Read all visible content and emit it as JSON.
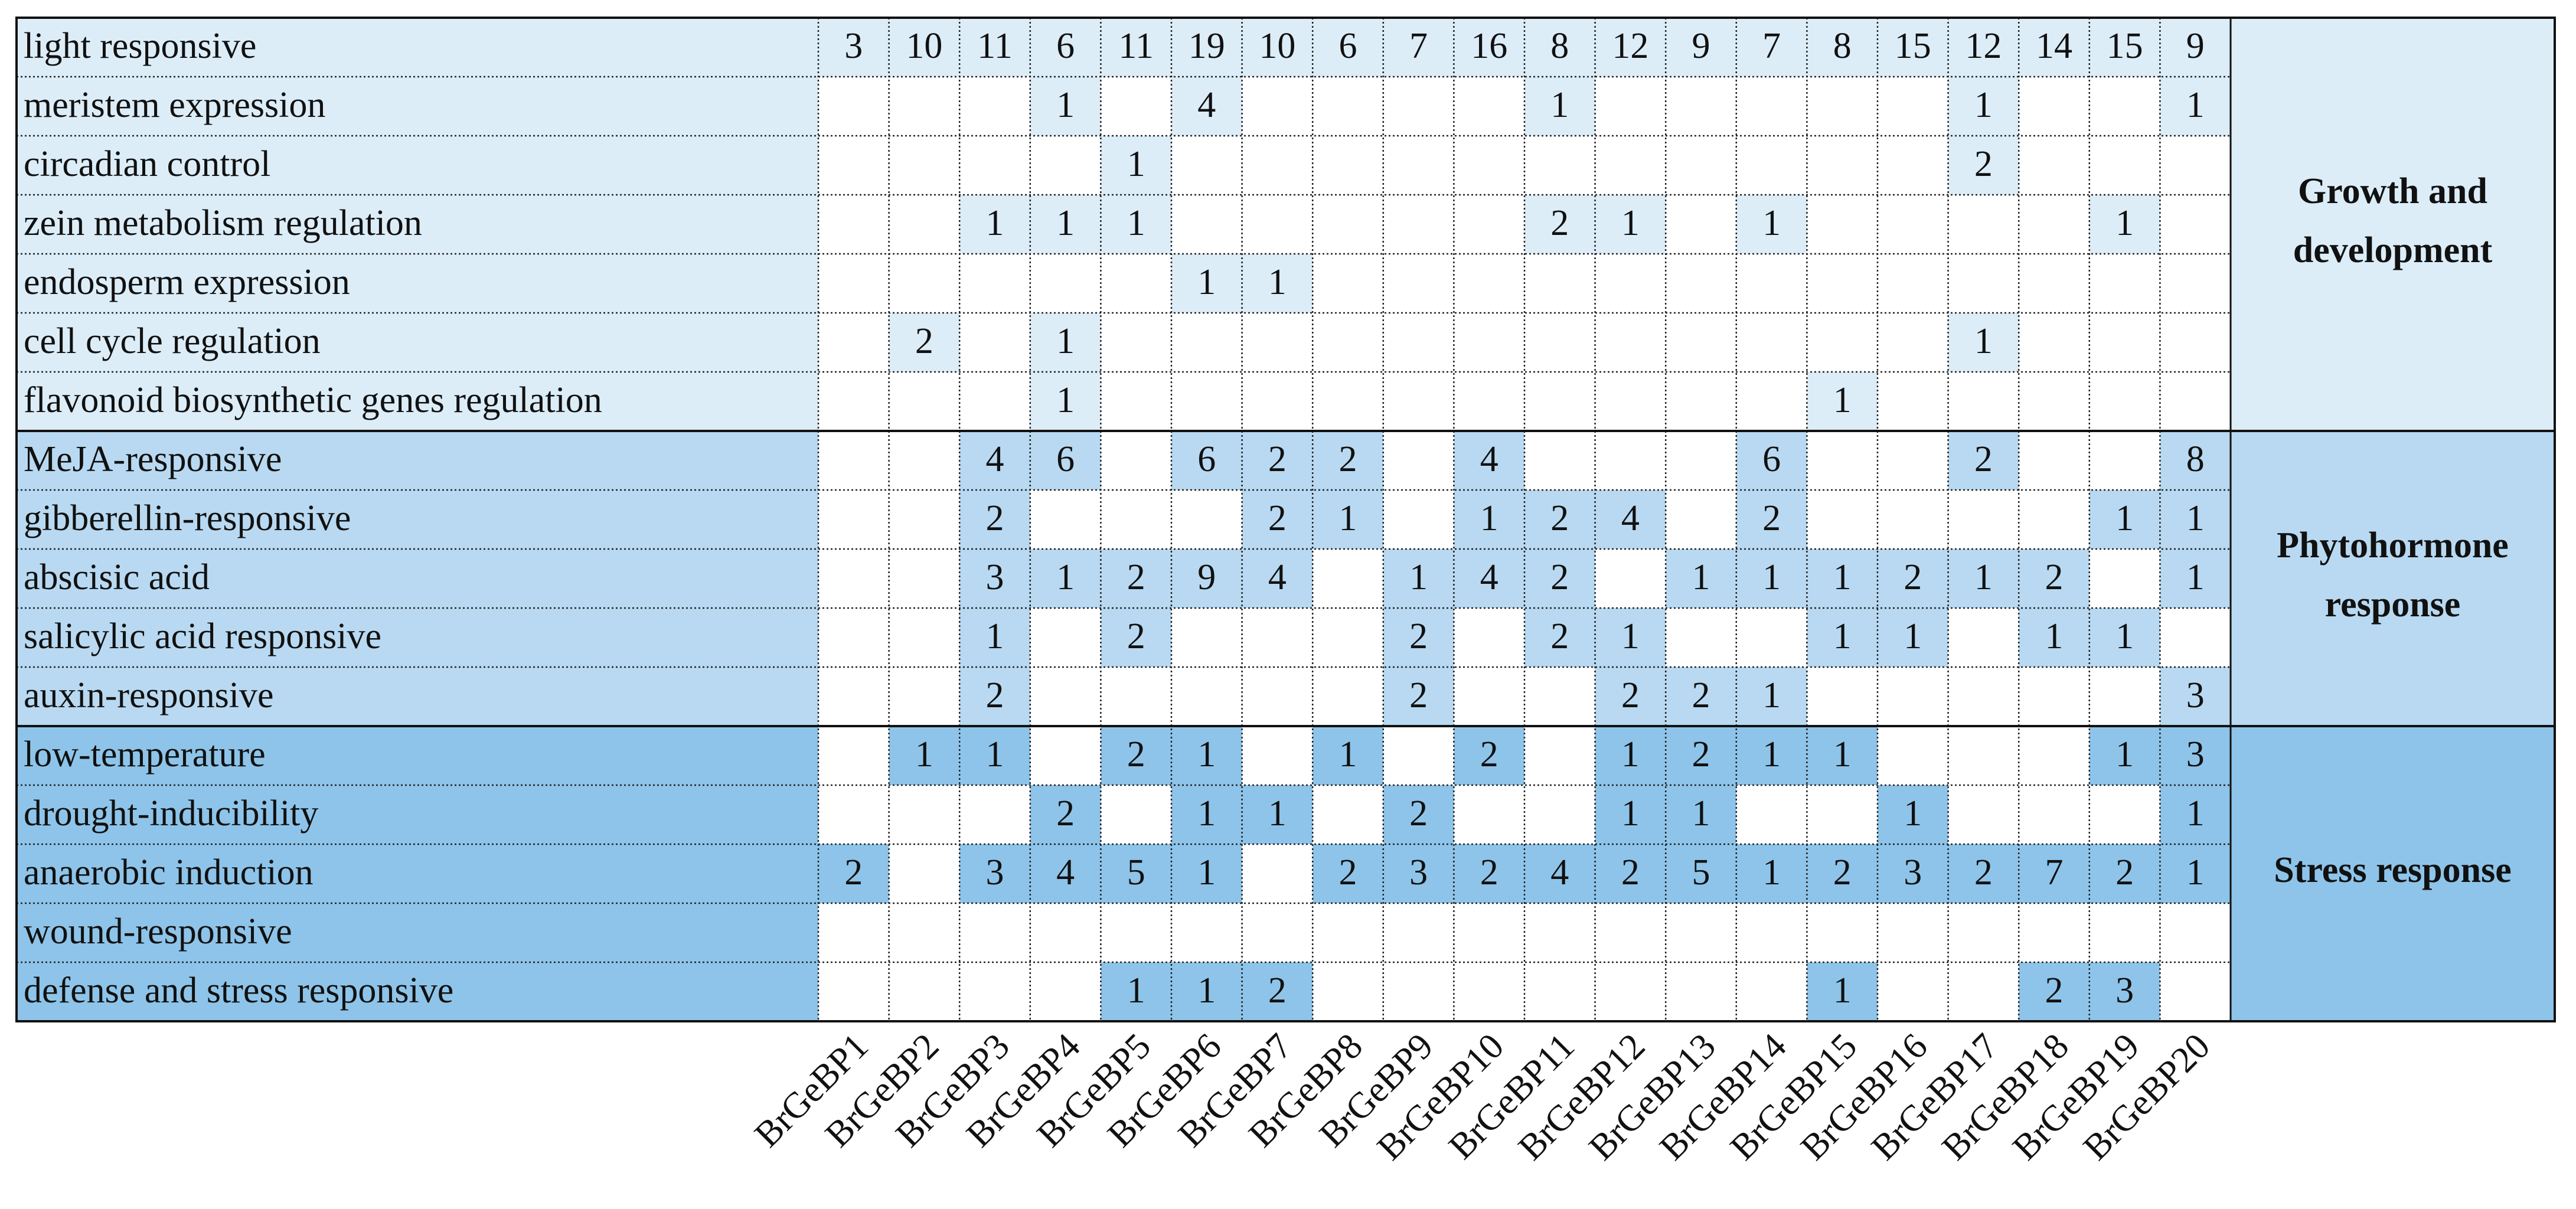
{
  "columns": [
    "BrGeBP1",
    "BrGeBP2",
    "BrGeBP3",
    "BrGeBP4",
    "BrGeBP5",
    "BrGeBP6",
    "BrGeBP7",
    "BrGeBP8",
    "BrGeBP9",
    "BrGeBP10",
    "BrGeBP11",
    "BrGeBP12",
    "BrGeBP13",
    "BrGeBP14",
    "BrGeBP15",
    "BrGeBP16",
    "BrGeBP17",
    "BrGeBP18",
    "BrGeBP19",
    "BrGeBP20"
  ],
  "groups": [
    {
      "label_lines": [
        "Growth and",
        "development"
      ],
      "color": "#dcedf8",
      "rows": [
        {
          "label": "light responsive",
          "values": [
            3,
            10,
            11,
            6,
            11,
            19,
            10,
            6,
            7,
            16,
            8,
            12,
            9,
            7,
            8,
            15,
            12,
            14,
            15,
            9
          ]
        },
        {
          "label": "meristem expression",
          "values": [
            null,
            null,
            null,
            1,
            null,
            4,
            null,
            null,
            null,
            null,
            1,
            null,
            null,
            null,
            null,
            null,
            1,
            null,
            null,
            1
          ]
        },
        {
          "label": "circadian control",
          "values": [
            null,
            null,
            null,
            null,
            1,
            null,
            null,
            null,
            null,
            null,
            null,
            null,
            null,
            null,
            null,
            null,
            2,
            null,
            null,
            null
          ]
        },
        {
          "label": "zein metabolism regulation",
          "values": [
            null,
            null,
            1,
            1,
            1,
            null,
            null,
            null,
            null,
            null,
            2,
            1,
            null,
            1,
            null,
            null,
            null,
            null,
            1,
            null
          ]
        },
        {
          "label": "endosperm expression",
          "values": [
            null,
            null,
            null,
            null,
            null,
            1,
            1,
            null,
            null,
            null,
            null,
            null,
            null,
            null,
            null,
            null,
            null,
            null,
            null,
            null
          ]
        },
        {
          "label": "cell cycle regulation",
          "values": [
            null,
            2,
            null,
            1,
            null,
            null,
            null,
            null,
            null,
            null,
            null,
            null,
            null,
            null,
            null,
            null,
            1,
            null,
            null,
            null
          ]
        },
        {
          "label": "flavonoid biosynthetic genes regulation",
          "values": [
            null,
            null,
            null,
            1,
            null,
            null,
            null,
            null,
            null,
            null,
            null,
            null,
            null,
            null,
            1,
            null,
            null,
            null,
            null,
            null
          ]
        }
      ]
    },
    {
      "label_lines": [
        "Phytohormone",
        "response"
      ],
      "color": "#b8d9f1",
      "rows": [
        {
          "label": "MeJA-responsive",
          "values": [
            null,
            null,
            4,
            6,
            null,
            6,
            2,
            2,
            null,
            4,
            null,
            null,
            null,
            6,
            null,
            null,
            2,
            null,
            null,
            8
          ]
        },
        {
          "label": "gibberellin-responsive",
          "values": [
            null,
            null,
            2,
            null,
            null,
            null,
            2,
            1,
            null,
            1,
            2,
            4,
            null,
            2,
            null,
            null,
            null,
            null,
            1,
            1
          ]
        },
        {
          "label": "abscisic acid",
          "values": [
            null,
            null,
            3,
            1,
            2,
            9,
            4,
            null,
            1,
            4,
            2,
            null,
            1,
            1,
            1,
            2,
            1,
            2,
            null,
            1
          ]
        },
        {
          "label": "salicylic acid responsive",
          "values": [
            null,
            null,
            1,
            null,
            2,
            null,
            null,
            null,
            2,
            null,
            2,
            1,
            null,
            null,
            1,
            1,
            null,
            1,
            1,
            null
          ]
        },
        {
          "label": "auxin-responsive",
          "values": [
            null,
            null,
            2,
            null,
            null,
            null,
            null,
            null,
            2,
            null,
            null,
            2,
            2,
            1,
            null,
            null,
            null,
            null,
            null,
            3
          ]
        }
      ]
    },
    {
      "label_lines": [
        "Stress response"
      ],
      "color": "#8ec4e9",
      "rows": [
        {
          "label": "low-temperature",
          "values": [
            null,
            1,
            1,
            null,
            2,
            1,
            null,
            1,
            null,
            2,
            null,
            1,
            2,
            1,
            1,
            null,
            null,
            null,
            1,
            3
          ]
        },
        {
          "label": "drought-inducibility",
          "values": [
            null,
            null,
            null,
            2,
            null,
            1,
            1,
            null,
            2,
            null,
            null,
            1,
            1,
            null,
            null,
            1,
            null,
            null,
            null,
            1
          ]
        },
        {
          "label": "anaerobic induction",
          "values": [
            2,
            null,
            3,
            4,
            5,
            1,
            null,
            2,
            3,
            2,
            4,
            2,
            5,
            1,
            2,
            3,
            2,
            7,
            2,
            1
          ]
        },
        {
          "label": "wound-responsive",
          "values": [
            null,
            null,
            null,
            null,
            null,
            null,
            null,
            null,
            null,
            null,
            null,
            null,
            null,
            null,
            null,
            null,
            null,
            null,
            null,
            null
          ]
        },
        {
          "label": "defense and stress responsive",
          "values": [
            null,
            null,
            null,
            null,
            1,
            1,
            2,
            null,
            null,
            null,
            null,
            null,
            null,
            null,
            1,
            null,
            null,
            2,
            3,
            null
          ]
        }
      ]
    }
  ]
}
